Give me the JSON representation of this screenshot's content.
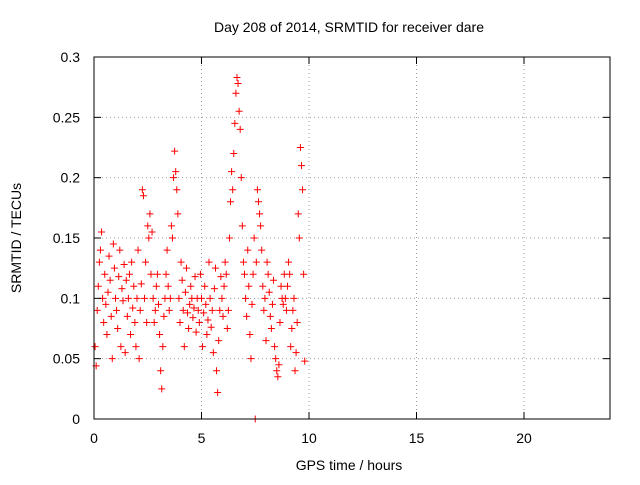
{
  "chart_data": {
    "type": "scatter",
    "title": "Day 208 of 2014, SRMTID for receiver dare",
    "xlabel": "GPS time / hours",
    "ylabel": "SRMTID / TECUs",
    "xlim": [
      0,
      24
    ],
    "ylim": [
      0,
      0.3
    ],
    "x_ticks": [
      0,
      5,
      10,
      15,
      20
    ],
    "x_tick_labels": [
      "0",
      "5",
      "10",
      "15",
      "20"
    ],
    "y_ticks": [
      0,
      0.05,
      0.1,
      0.15,
      0.2,
      0.25,
      0.3
    ],
    "y_tick_labels": [
      "0",
      "0.05",
      "0.1",
      "0.15",
      "0.2",
      "0.25",
      "0.3"
    ],
    "grid": true,
    "marker": "+",
    "series": [
      {
        "name": "SRMTID",
        "color": "#ff0000",
        "points": [
          [
            0.05,
            0.06
          ],
          [
            0.1,
            0.044
          ],
          [
            0.15,
            0.09
          ],
          [
            0.2,
            0.11
          ],
          [
            0.25,
            0.13
          ],
          [
            0.3,
            0.14
          ],
          [
            0.35,
            0.155
          ],
          [
            0.4,
            0.1
          ],
          [
            0.45,
            0.08
          ],
          [
            0.5,
            0.12
          ],
          [
            0.55,
            0.095
          ],
          [
            0.6,
            0.07
          ],
          [
            0.65,
            0.105
          ],
          [
            0.7,
            0.135
          ],
          [
            0.75,
            0.115
          ],
          [
            0.8,
            0.085
          ],
          [
            0.85,
            0.05
          ],
          [
            0.9,
            0.145
          ],
          [
            0.95,
            0.125
          ],
          [
            1.0,
            0.1
          ],
          [
            1.05,
            0.09
          ],
          [
            1.1,
            0.075
          ],
          [
            1.15,
            0.118
          ],
          [
            1.2,
            0.14
          ],
          [
            1.25,
            0.06
          ],
          [
            1.3,
            0.108
          ],
          [
            1.35,
            0.098
          ],
          [
            1.4,
            0.128
          ],
          [
            1.45,
            0.055
          ],
          [
            1.5,
            0.115
          ],
          [
            1.55,
            0.085
          ],
          [
            1.6,
            0.1
          ],
          [
            1.65,
            0.12
          ],
          [
            1.7,
            0.07
          ],
          [
            1.75,
            0.13
          ],
          [
            1.8,
            0.092
          ],
          [
            1.85,
            0.11
          ],
          [
            1.9,
            0.08
          ],
          [
            1.95,
            0.06
          ],
          [
            2.0,
            0.1
          ],
          [
            2.05,
            0.14
          ],
          [
            2.1,
            0.05
          ],
          [
            2.15,
            0.09
          ],
          [
            2.2,
            0.112
          ],
          [
            2.25,
            0.19
          ],
          [
            2.3,
            0.185
          ],
          [
            2.35,
            0.1
          ],
          [
            2.4,
            0.13
          ],
          [
            2.45,
            0.08
          ],
          [
            2.5,
            0.16
          ],
          [
            2.55,
            0.15
          ],
          [
            2.6,
            0.17
          ],
          [
            2.65,
            0.12
          ],
          [
            2.7,
            0.155
          ],
          [
            2.75,
            0.1
          ],
          [
            2.8,
            0.08
          ],
          [
            2.85,
            0.09
          ],
          [
            2.9,
            0.11
          ],
          [
            2.95,
            0.12
          ],
          [
            3.0,
            0.095
          ],
          [
            3.05,
            0.07
          ],
          [
            3.1,
            0.04
          ],
          [
            3.15,
            0.025
          ],
          [
            3.2,
            0.06
          ],
          [
            3.25,
            0.085
          ],
          [
            3.3,
            0.1
          ],
          [
            3.35,
            0.12
          ],
          [
            3.4,
            0.14
          ],
          [
            3.45,
            0.11
          ],
          [
            3.5,
            0.09
          ],
          [
            3.55,
            0.1
          ],
          [
            3.6,
            0.16
          ],
          [
            3.65,
            0.15
          ],
          [
            3.7,
            0.2
          ],
          [
            3.75,
            0.222
          ],
          [
            3.8,
            0.205
          ],
          [
            3.85,
            0.19
          ],
          [
            3.9,
            0.17
          ],
          [
            3.95,
            0.1
          ],
          [
            4.0,
            0.08
          ],
          [
            4.05,
            0.13
          ],
          [
            4.1,
            0.115
          ],
          [
            4.15,
            0.09
          ],
          [
            4.2,
            0.06
          ],
          [
            4.25,
            0.105
          ],
          [
            4.3,
            0.125
          ],
          [
            4.35,
            0.088
          ],
          [
            4.4,
            0.075
          ],
          [
            4.45,
            0.095
          ],
          [
            4.5,
            0.11
          ],
          [
            4.55,
            0.1
          ],
          [
            4.6,
            0.084
          ],
          [
            4.65,
            0.092
          ],
          [
            4.7,
            0.118
          ],
          [
            4.75,
            0.072
          ],
          [
            4.8,
            0.1
          ],
          [
            4.85,
            0.09
          ],
          [
            4.9,
            0.08
          ],
          [
            4.95,
            0.12
          ],
          [
            5.0,
            0.1
          ],
          [
            5.05,
            0.06
          ],
          [
            5.1,
            0.088
          ],
          [
            5.15,
            0.11
          ],
          [
            5.2,
            0.095
          ],
          [
            5.25,
            0.07
          ],
          [
            5.3,
            0.082
          ],
          [
            5.35,
            0.13
          ],
          [
            5.4,
            0.1
          ],
          [
            5.45,
            0.076
          ],
          [
            5.5,
            0.09
          ],
          [
            5.55,
            0.055
          ],
          [
            5.6,
            0.108
          ],
          [
            5.65,
            0.125
          ],
          [
            5.7,
            0.04
          ],
          [
            5.75,
            0.022
          ],
          [
            5.8,
            0.065
          ],
          [
            5.85,
            0.09
          ],
          [
            5.9,
            0.118
          ],
          [
            5.95,
            0.1
          ],
          [
            6.0,
            0.085
          ],
          [
            6.05,
            0.11
          ],
          [
            6.1,
            0.13
          ],
          [
            6.15,
            0.12
          ],
          [
            6.2,
            0.075
          ],
          [
            6.25,
            0.09
          ],
          [
            6.3,
            0.15
          ],
          [
            6.35,
            0.18
          ],
          [
            6.4,
            0.205
          ],
          [
            6.45,
            0.19
          ],
          [
            6.5,
            0.22
          ],
          [
            6.55,
            0.245
          ],
          [
            6.6,
            0.27
          ],
          [
            6.65,
            0.283
          ],
          [
            6.7,
            0.278
          ],
          [
            6.75,
            0.255
          ],
          [
            6.8,
            0.24
          ],
          [
            6.85,
            0.2
          ],
          [
            6.9,
            0.16
          ],
          [
            6.95,
            0.13
          ],
          [
            7.0,
            0.12
          ],
          [
            7.05,
            0.1
          ],
          [
            7.1,
            0.085
          ],
          [
            7.15,
            0.14
          ],
          [
            7.2,
            0.11
          ],
          [
            7.25,
            0.07
          ],
          [
            7.3,
            0.05
          ],
          [
            7.35,
            0.095
          ],
          [
            7.4,
            0.12
          ],
          [
            7.45,
            0.15
          ],
          [
            7.5,
            0.0
          ],
          [
            7.55,
            0.13
          ],
          [
            7.6,
            0.19
          ],
          [
            7.65,
            0.18
          ],
          [
            7.7,
            0.17
          ],
          [
            7.75,
            0.16
          ],
          [
            7.8,
            0.14
          ],
          [
            7.85,
            0.11
          ],
          [
            7.9,
            0.09
          ],
          [
            7.95,
            0.1
          ],
          [
            8.0,
            0.065
          ],
          [
            8.05,
            0.13
          ],
          [
            8.1,
            0.12
          ],
          [
            8.15,
            0.105
          ],
          [
            8.2,
            0.085
          ],
          [
            8.25,
            0.075
          ],
          [
            8.3,
            0.095
          ],
          [
            8.35,
            0.115
          ],
          [
            8.4,
            0.06
          ],
          [
            8.45,
            0.05
          ],
          [
            8.5,
            0.04
          ],
          [
            8.55,
            0.035
          ],
          [
            8.6,
            0.045
          ],
          [
            8.65,
            0.08
          ],
          [
            8.7,
            0.11
          ],
          [
            8.75,
            0.1
          ],
          [
            8.8,
            0.095
          ],
          [
            8.85,
            0.12
          ],
          [
            8.9,
            0.1
          ],
          [
            8.95,
            0.09
          ],
          [
            9.0,
            0.11
          ],
          [
            9.05,
            0.13
          ],
          [
            9.1,
            0.12
          ],
          [
            9.15,
            0.06
          ],
          [
            9.2,
            0.075
          ],
          [
            9.25,
            0.09
          ],
          [
            9.3,
            0.1
          ],
          [
            9.35,
            0.04
          ],
          [
            9.4,
            0.055
          ],
          [
            9.45,
            0.08
          ],
          [
            9.5,
            0.17
          ],
          [
            9.55,
            0.15
          ],
          [
            9.6,
            0.225
          ],
          [
            9.65,
            0.21
          ],
          [
            9.7,
            0.19
          ],
          [
            9.75,
            0.12
          ],
          [
            9.8,
            0.048
          ]
        ]
      }
    ]
  }
}
